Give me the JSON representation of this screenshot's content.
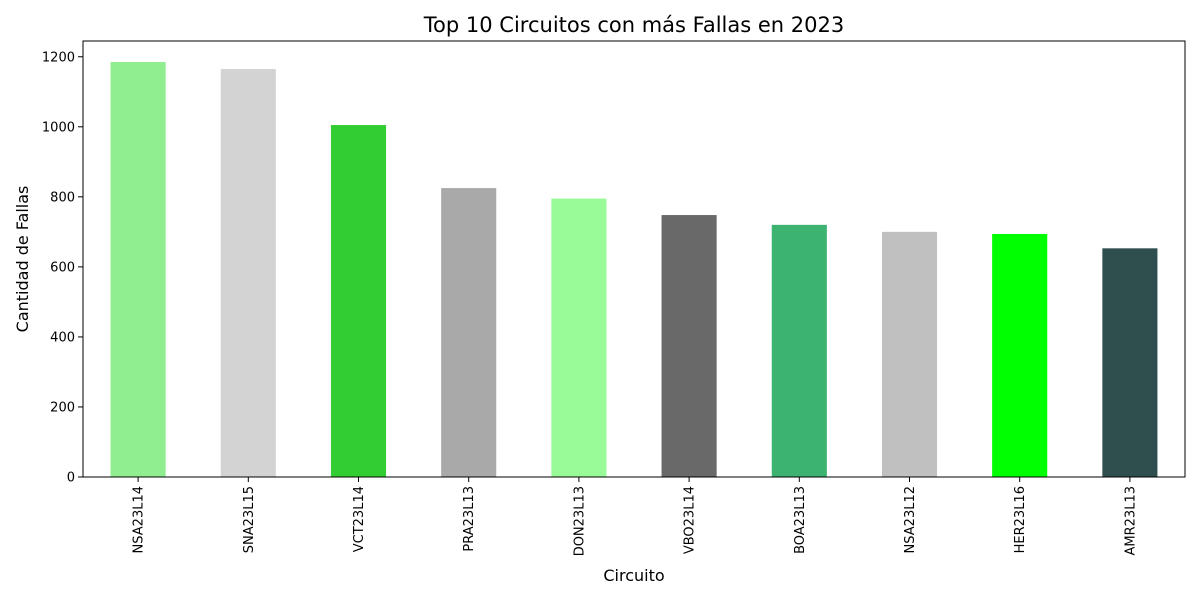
{
  "chart_data": {
    "type": "bar",
    "title": "Top 10 Circuitos con más Fallas en 2023",
    "xlabel": "Circuito",
    "ylabel": "Cantidad de Fallas",
    "categories": [
      "NSA23L14",
      "SNA23L15",
      "VCT23L14",
      "PRA23L13",
      "DON23L13",
      "VBO23L14",
      "BOA23L13",
      "NSA23L12",
      "HER23L16",
      "AMR23L13"
    ],
    "values": [
      1185,
      1165,
      1005,
      825,
      795,
      748,
      720,
      700,
      694,
      653
    ],
    "colors": [
      "#90ee90",
      "#d3d3d3",
      "#32cd32",
      "#a9a9a9",
      "#98fb98",
      "#696969",
      "#3cb371",
      "#c0c0c0",
      "#00ff00",
      "#2f4f4f"
    ],
    "ylim": [
      0,
      1245
    ],
    "yticks": [
      0,
      200,
      400,
      600,
      800,
      1000,
      1200
    ],
    "grid": false,
    "legend": "none"
  }
}
